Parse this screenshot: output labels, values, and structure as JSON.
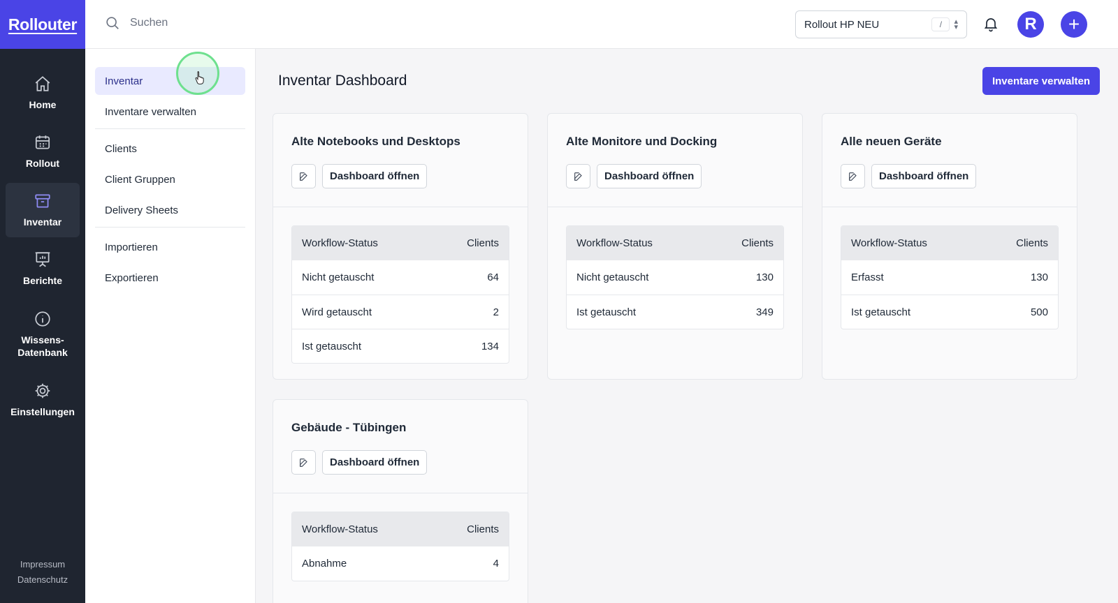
{
  "brand": "Rollouter",
  "rail": {
    "items": [
      {
        "label": "Home",
        "icon": "home-icon"
      },
      {
        "label": "Rollout",
        "icon": "calendar-icon"
      },
      {
        "label": "Inventar",
        "icon": "archive-box-icon"
      },
      {
        "label": "Berichte",
        "icon": "presentation-chart-icon"
      },
      {
        "label": "Wissens-\nDatenbank",
        "label_line1": "Wissens-",
        "label_line2": "Datenbank",
        "icon": "info-circle-icon"
      },
      {
        "label": "Einstellungen",
        "icon": "gear-icon"
      }
    ],
    "active_index": 2,
    "footer": {
      "impressum": "Impressum",
      "datenschutz": "Datenschutz"
    }
  },
  "topbar": {
    "search_placeholder": "Suchen",
    "rollout_select": {
      "value": "Rollout HP NEU",
      "shortcut": "/"
    },
    "avatar_letter": "R",
    "plus_label": "+"
  },
  "subnav": {
    "items": [
      {
        "label": "Inventar",
        "active": true
      },
      {
        "label": "Inventare verwalten"
      },
      {
        "label": "Clients"
      },
      {
        "label": "Client Gruppen"
      },
      {
        "label": "Delivery Sheets"
      },
      {
        "label": "Importieren"
      },
      {
        "label": "Exportieren"
      }
    ]
  },
  "main": {
    "title": "Inventar Dashboard",
    "manage_button": "Inventare verwalten",
    "open_label": "Dashboard öffnen",
    "col_status": "Workflow-Status",
    "col_clients": "Clients",
    "cards": [
      {
        "title": "Alte Notebooks und Desktops",
        "rows": [
          {
            "status": "Nicht getauscht",
            "clients": "64"
          },
          {
            "status": "Wird getauscht",
            "clients": "2"
          },
          {
            "status": "Ist getauscht",
            "clients": "134"
          }
        ]
      },
      {
        "title": "Alte Monitore und Docking",
        "rows": [
          {
            "status": "Nicht getauscht",
            "clients": "130"
          },
          {
            "status": "Ist getauscht",
            "clients": "349"
          }
        ]
      },
      {
        "title": "Alle neuen Geräte",
        "rows": [
          {
            "status": "Erfasst",
            "clients": "130"
          },
          {
            "status": "Ist getauscht",
            "clients": "500"
          }
        ]
      },
      {
        "title": "Gebäude - Tübingen",
        "rows": [
          {
            "status": "Abnahme",
            "clients": "4"
          }
        ]
      }
    ]
  },
  "colors": {
    "accent": "#4a44e6",
    "rail_bg": "#1f2530",
    "active_nav_bg": "#e9eaff"
  }
}
